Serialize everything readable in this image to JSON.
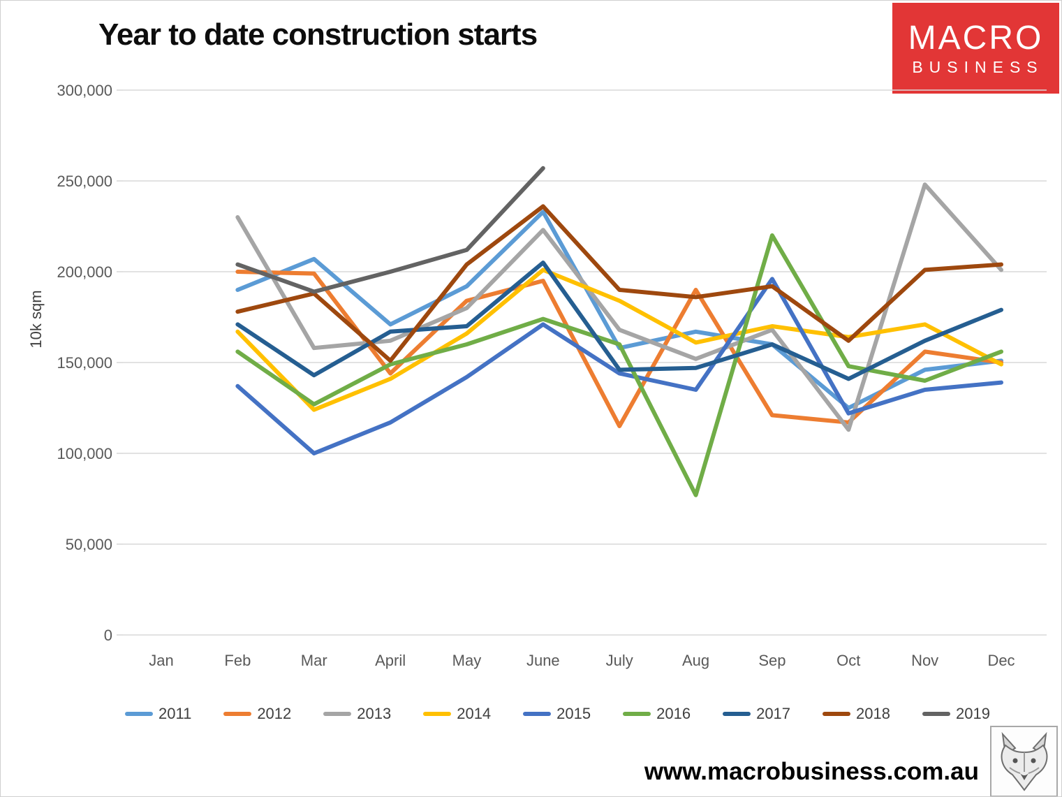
{
  "header": {
    "title": "Year to date construction starts",
    "logo": {
      "line1": "MACRO",
      "line2": "BUSINESS",
      "bg_color": "#e23636"
    }
  },
  "chart_data": {
    "type": "line",
    "title": "Year to date construction starts",
    "ylabel": "10k sqm",
    "xlabel": "",
    "grid": true,
    "legend_position": "bottom",
    "ylim": [
      0,
      300000
    ],
    "ytick_step": 50000,
    "categories": [
      "Jan",
      "Feb",
      "Mar",
      "April",
      "May",
      "June",
      "July",
      "Aug",
      "Sep",
      "Oct",
      "Nov",
      "Dec"
    ],
    "series": [
      {
        "name": "2011",
        "color": "#5B9BD5",
        "values": [
          null,
          190000,
          207000,
          171000,
          192000,
          233000,
          158000,
          167000,
          160000,
          125000,
          146000,
          151000
        ]
      },
      {
        "name": "2012",
        "color": "#ED7D31",
        "values": [
          null,
          200000,
          199000,
          144000,
          184000,
          195000,
          115000,
          190000,
          121000,
          117000,
          156000,
          150000
        ]
      },
      {
        "name": "2013",
        "color": "#A5A5A5",
        "values": [
          null,
          230000,
          158000,
          162000,
          180000,
          223000,
          168000,
          152000,
          168000,
          113000,
          248000,
          201000
        ]
      },
      {
        "name": "2014",
        "color": "#FFC000",
        "values": [
          null,
          167000,
          124000,
          141000,
          166000,
          201000,
          184000,
          161000,
          170000,
          164000,
          171000,
          149000
        ]
      },
      {
        "name": "2015",
        "color": "#4472C4",
        "values": [
          null,
          137000,
          100000,
          117000,
          142000,
          171000,
          144000,
          135000,
          196000,
          122000,
          135000,
          139000
        ]
      },
      {
        "name": "2016",
        "color": "#70AD47",
        "values": [
          null,
          156000,
          127000,
          149000,
          160000,
          174000,
          160000,
          77000,
          220000,
          148000,
          140000,
          156000
        ]
      },
      {
        "name": "2017",
        "color": "#255E91",
        "values": [
          null,
          171000,
          143000,
          167000,
          170000,
          205000,
          146000,
          147000,
          160000,
          141000,
          162000,
          179000
        ]
      },
      {
        "name": "2018",
        "color": "#9E480E",
        "values": [
          null,
          178000,
          188000,
          151000,
          204000,
          236000,
          190000,
          186000,
          192000,
          162000,
          201000,
          204000
        ]
      },
      {
        "name": "2019",
        "color": "#636363",
        "values": [
          null,
          204000,
          189000,
          200000,
          212000,
          257000,
          null,
          null,
          null,
          null,
          null,
          null
        ]
      }
    ]
  },
  "footer": {
    "watermark": "www.macrobusiness.com.au",
    "fox_logo": "fox-head-logo"
  }
}
